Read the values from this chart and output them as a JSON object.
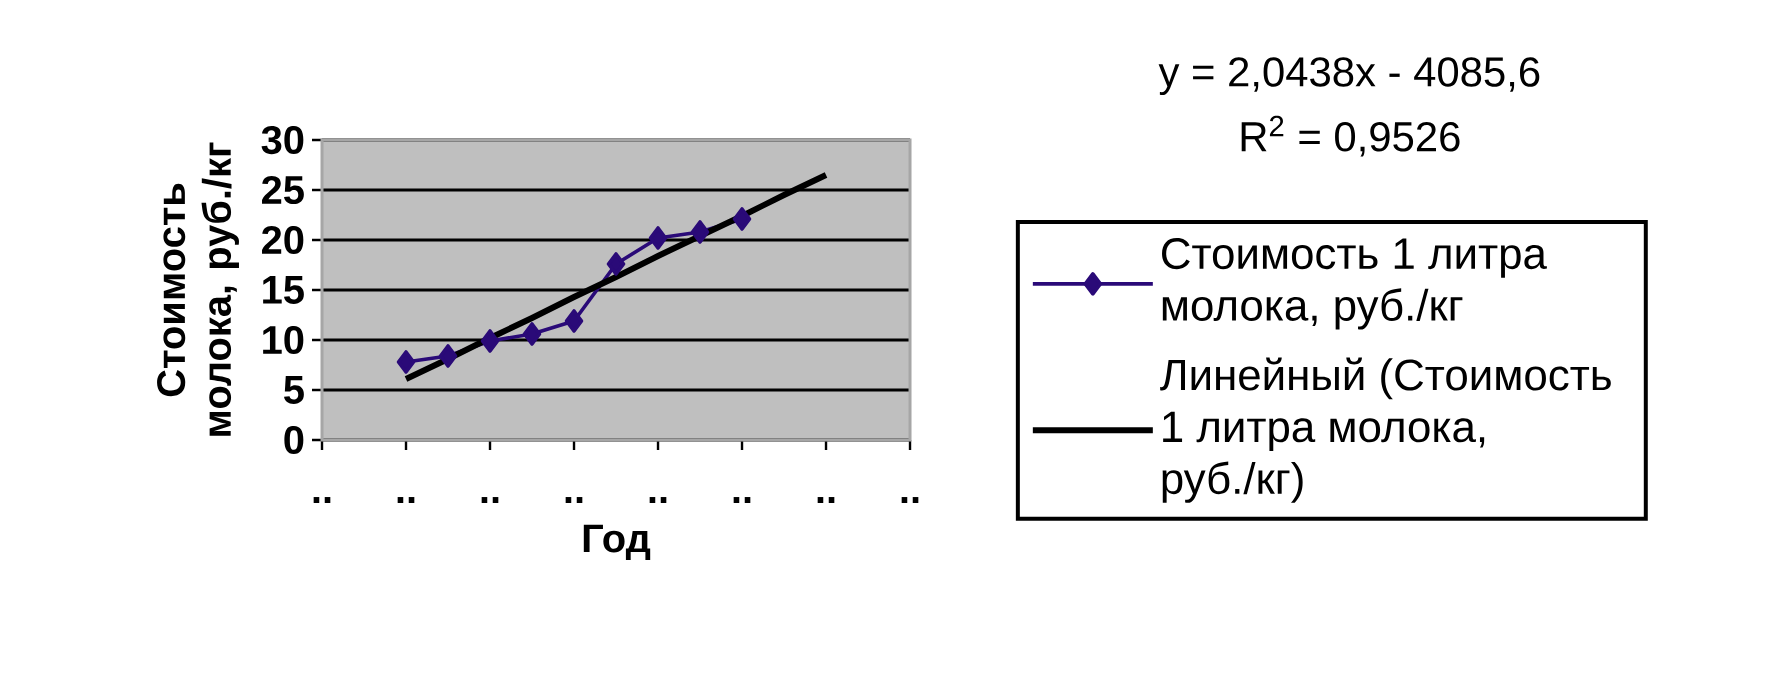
{
  "chart_data": {
    "type": "line",
    "xlabel": "Год",
    "ylabel": "Стоимость молока, руб./кг",
    "annotations": [
      "y = 2,0438x - 4085,6",
      "R$^{2}$ = 0,9526"
    ],
    "categories": [
      "..",
      null,
      "..",
      null,
      "..",
      null,
      "..",
      null,
      "..",
      null,
      "..",
      null,
      "..",
      null,
      ".."
    ],
    "ylim": [
      0,
      30
    ],
    "yticks": [
      0,
      5,
      10,
      15,
      20,
      25,
      30
    ],
    "grid": "y",
    "legend": "right",
    "marker": "diamond",
    "line_style": "solid",
    "series": [
      {
        "name": "Стоимость 1 литра молока, руб./кг",
        "color": "#2a0a78",
        "values": [
          null,
          null,
          7.8,
          8.4,
          9.9,
          10.6,
          11.9,
          17.6,
          20.2,
          20.8,
          22.1,
          null,
          null,
          null,
          null
        ]
      },
      {
        "name": "Линейный (Стоимость 1 литра молока, руб./кг)",
        "type": "line",
        "marker": "none",
        "color": "#000000",
        "values": [
          null,
          null,
          6.1,
          8.1,
          10.2,
          12.2,
          14.3,
          16.3,
          18.4,
          20.4,
          22.4,
          24.5,
          26.5,
          null,
          null
        ]
      }
    ]
  }
}
